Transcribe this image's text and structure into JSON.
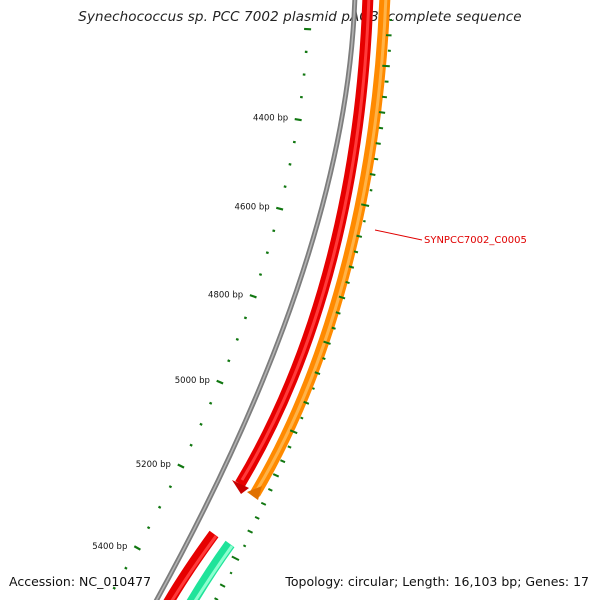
{
  "title": "Synechococcus sp. PCC 7002 plasmid pAQ3, complete sequence",
  "accession": {
    "label": "Accession:",
    "value": "NC_010477"
  },
  "summary": {
    "topology_label": "Topology:",
    "topology": "circular",
    "length_label": "Length:",
    "length": "16,103 bp",
    "genes_label": "Genes:",
    "genes": "17"
  },
  "ticks": [
    {
      "bp": 4400,
      "label": "4400 bp"
    },
    {
      "bp": 4600,
      "label": "4600 bp"
    },
    {
      "bp": 4800,
      "label": "4800 bp"
    },
    {
      "bp": 5000,
      "label": "5000 bp"
    },
    {
      "bp": 5200,
      "label": "5200 bp"
    },
    {
      "bp": 5400,
      "label": "5400 bp"
    }
  ],
  "gene_label": {
    "text": "SYNPCC7002_C0005",
    "color": "#e00000"
  },
  "colors": {
    "backbone": "#8a8a8a",
    "forward_gene": "#ee0000",
    "reverse_gene": "#ff8c00",
    "green_gene": "#2ee8a0",
    "gc_marks": "#117711"
  }
}
